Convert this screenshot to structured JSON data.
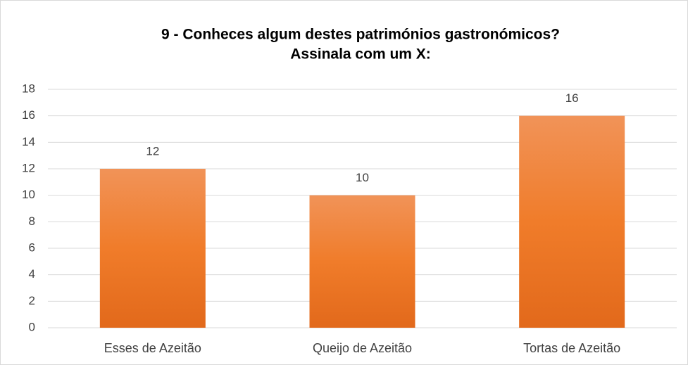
{
  "chart_data": {
    "type": "bar",
    "title": [
      "9 - Conheces algum destes patrimónios gastronómicos?",
      "Assinala com um X:"
    ],
    "categories": [
      "Esses de Azeitão",
      "Queijo de Azeitão",
      "Tortas de Azeitão"
    ],
    "values": [
      12,
      10,
      16
    ],
    "color": "#f07c2a",
    "ylim": [
      0,
      18
    ],
    "yticks": [
      0,
      2,
      4,
      6,
      8,
      10,
      12,
      14,
      16,
      18
    ],
    "grid": true
  }
}
